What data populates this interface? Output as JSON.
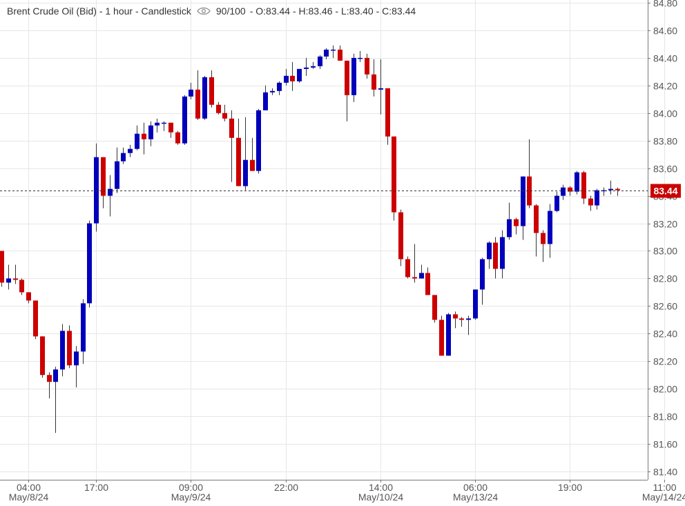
{
  "header": {
    "instrument": "Brent Crude Oil (Bid) - 1 hour - Candlestick",
    "zoom": "90/100",
    "ohlc": "- O:83.44 - H:83.46 - L:83.40 - C:83.44"
  },
  "price_tag": "83.44",
  "colors": {
    "up": "#0000bb",
    "down": "#cc0000",
    "grid": "#e6e6e6",
    "axis_text": "#555555",
    "price_tag_bg": "#cc0000",
    "dashed_line": "#333333"
  },
  "chart_data": {
    "type": "candlestick",
    "ylim": [
      81.34,
      84.82
    ],
    "y_ticks": [
      "84.80",
      "84.60",
      "84.40",
      "84.20",
      "84.00",
      "83.80",
      "83.60",
      "83.40",
      "83.20",
      "83.00",
      "82.80",
      "82.60",
      "82.40",
      "82.20",
      "82.00",
      "81.80",
      "81.60",
      "81.40"
    ],
    "x_ticks": [
      {
        "time": "04:00",
        "date": "May/8/24",
        "index": 4
      },
      {
        "time": "17:00",
        "date": "May/8/24",
        "index": 14
      },
      {
        "time": "09:00",
        "date": "May/9/24",
        "index": 28
      },
      {
        "time": "22:00",
        "date": "May/9/24",
        "index": 42
      },
      {
        "time": "14:00",
        "date": "May/10/24",
        "index": 56
      },
      {
        "time": "06:00",
        "date": "May/13/24",
        "index": 70
      },
      {
        "time": "19:00",
        "date": "May/13/24",
        "index": 84
      },
      {
        "time": "11:00",
        "date": "May/14/24",
        "index": 98
      }
    ],
    "date_labels": [
      "May/8/24",
      "May/9/24",
      "May/10/24",
      "May/13/24",
      "May/14/24"
    ],
    "last_price": 83.44,
    "candles": [
      {
        "o": 83.0,
        "h": 83.0,
        "l": 82.74,
        "c": 82.77
      },
      {
        "o": 82.77,
        "h": 82.9,
        "l": 82.72,
        "c": 82.8
      },
      {
        "o": 82.8,
        "h": 82.9,
        "l": 82.76,
        "c": 82.79
      },
      {
        "o": 82.79,
        "h": 82.8,
        "l": 82.68,
        "c": 82.7
      },
      {
        "o": 82.7,
        "h": 82.7,
        "l": 82.62,
        "c": 82.64
      },
      {
        "o": 82.64,
        "h": 82.64,
        "l": 82.36,
        "c": 82.38
      },
      {
        "o": 82.38,
        "h": 82.38,
        "l": 82.08,
        "c": 82.1
      },
      {
        "o": 82.1,
        "h": 82.12,
        "l": 81.93,
        "c": 82.05
      },
      {
        "o": 82.05,
        "h": 82.16,
        "l": 81.68,
        "c": 82.14
      },
      {
        "o": 82.14,
        "h": 82.47,
        "l": 82.09,
        "c": 82.42
      },
      {
        "o": 82.42,
        "h": 82.46,
        "l": 82.15,
        "c": 82.17
      },
      {
        "o": 82.17,
        "h": 82.31,
        "l": 82.01,
        "c": 82.27
      },
      {
        "o": 82.27,
        "h": 82.65,
        "l": 82.18,
        "c": 82.62
      },
      {
        "o": 82.62,
        "h": 83.22,
        "l": 82.59,
        "c": 83.2
      },
      {
        "o": 83.2,
        "h": 83.78,
        "l": 83.14,
        "c": 83.68
      },
      {
        "o": 83.68,
        "h": 83.68,
        "l": 83.31,
        "c": 83.4
      },
      {
        "o": 83.4,
        "h": 83.55,
        "l": 83.25,
        "c": 83.45
      },
      {
        "o": 83.45,
        "h": 83.75,
        "l": 83.42,
        "c": 83.65
      },
      {
        "o": 83.65,
        "h": 83.75,
        "l": 83.63,
        "c": 83.71
      },
      {
        "o": 83.71,
        "h": 83.77,
        "l": 83.68,
        "c": 83.74
      },
      {
        "o": 83.74,
        "h": 83.91,
        "l": 83.73,
        "c": 83.85
      },
      {
        "o": 83.85,
        "h": 83.93,
        "l": 83.7,
        "c": 83.81
      },
      {
        "o": 83.81,
        "h": 83.94,
        "l": 83.76,
        "c": 83.91
      },
      {
        "o": 83.91,
        "h": 83.96,
        "l": 83.86,
        "c": 83.93
      },
      {
        "o": 83.93,
        "h": 83.94,
        "l": 83.87,
        "c": 83.93
      },
      {
        "o": 83.93,
        "h": 83.93,
        "l": 83.82,
        "c": 83.86
      },
      {
        "o": 83.86,
        "h": 83.87,
        "l": 83.77,
        "c": 83.78
      },
      {
        "o": 83.78,
        "h": 84.13,
        "l": 83.77,
        "c": 84.12
      },
      {
        "o": 84.12,
        "h": 84.22,
        "l": 84.1,
        "c": 84.17
      },
      {
        "o": 84.17,
        "h": 84.31,
        "l": 83.95,
        "c": 83.96
      },
      {
        "o": 83.96,
        "h": 84.27,
        "l": 83.95,
        "c": 84.26
      },
      {
        "o": 84.26,
        "h": 84.31,
        "l": 84.04,
        "c": 84.06
      },
      {
        "o": 84.06,
        "h": 84.08,
        "l": 83.99,
        "c": 84.0
      },
      {
        "o": 84.0,
        "h": 84.06,
        "l": 83.94,
        "c": 83.96
      },
      {
        "o": 83.96,
        "h": 84.02,
        "l": 83.5,
        "c": 83.82
      },
      {
        "o": 83.82,
        "h": 83.96,
        "l": 83.47,
        "c": 83.47
      },
      {
        "o": 83.47,
        "h": 83.97,
        "l": 83.44,
        "c": 83.66
      },
      {
        "o": 83.66,
        "h": 83.82,
        "l": 83.58,
        "c": 83.58
      },
      {
        "o": 83.58,
        "h": 84.03,
        "l": 83.56,
        "c": 84.02
      },
      {
        "o": 84.02,
        "h": 84.2,
        "l": 84.02,
        "c": 84.15
      },
      {
        "o": 84.15,
        "h": 84.18,
        "l": 84.13,
        "c": 84.16
      },
      {
        "o": 84.16,
        "h": 84.23,
        "l": 84.13,
        "c": 84.22
      },
      {
        "o": 84.22,
        "h": 84.32,
        "l": 84.2,
        "c": 84.27
      },
      {
        "o": 84.27,
        "h": 84.37,
        "l": 84.16,
        "c": 84.23
      },
      {
        "o": 84.23,
        "h": 84.32,
        "l": 84.22,
        "c": 84.32
      },
      {
        "o": 84.32,
        "h": 84.4,
        "l": 84.27,
        "c": 84.33
      },
      {
        "o": 84.33,
        "h": 84.37,
        "l": 84.32,
        "c": 84.34
      },
      {
        "o": 84.34,
        "h": 84.42,
        "l": 84.32,
        "c": 84.41
      },
      {
        "o": 84.41,
        "h": 84.47,
        "l": 84.39,
        "c": 84.46
      },
      {
        "o": 84.46,
        "h": 84.49,
        "l": 84.4,
        "c": 84.46
      },
      {
        "o": 84.46,
        "h": 84.49,
        "l": 84.38,
        "c": 84.38
      },
      {
        "o": 84.38,
        "h": 84.38,
        "l": 83.94,
        "c": 84.13
      },
      {
        "o": 84.13,
        "h": 84.43,
        "l": 84.08,
        "c": 84.4
      },
      {
        "o": 84.4,
        "h": 84.45,
        "l": 84.37,
        "c": 84.4
      },
      {
        "o": 84.4,
        "h": 84.43,
        "l": 84.25,
        "c": 84.28
      },
      {
        "o": 84.28,
        "h": 84.39,
        "l": 84.12,
        "c": 84.17
      },
      {
        "o": 84.17,
        "h": 84.39,
        "l": 83.99,
        "c": 84.18
      },
      {
        "o": 84.18,
        "h": 84.18,
        "l": 83.77,
        "c": 83.83
      },
      {
        "o": 83.83,
        "h": 83.83,
        "l": 83.22,
        "c": 83.28
      },
      {
        "o": 83.28,
        "h": 83.3,
        "l": 82.89,
        "c": 82.94
      },
      {
        "o": 82.94,
        "h": 82.96,
        "l": 82.8,
        "c": 82.81
      },
      {
        "o": 82.81,
        "h": 83.05,
        "l": 82.77,
        "c": 82.8
      },
      {
        "o": 82.8,
        "h": 82.9,
        "l": 82.8,
        "c": 82.84
      },
      {
        "o": 82.84,
        "h": 82.88,
        "l": 82.68,
        "c": 82.68
      },
      {
        "o": 82.68,
        "h": 82.68,
        "l": 82.48,
        "c": 82.5
      },
      {
        "o": 82.5,
        "h": 82.53,
        "l": 82.24,
        "c": 82.24
      },
      {
        "o": 82.24,
        "h": 82.55,
        "l": 82.24,
        "c": 82.54
      },
      {
        "o": 82.54,
        "h": 82.56,
        "l": 82.44,
        "c": 82.51
      },
      {
        "o": 82.51,
        "h": 82.52,
        "l": 82.45,
        "c": 82.5
      },
      {
        "o": 82.5,
        "h": 82.53,
        "l": 82.39,
        "c": 82.51
      },
      {
        "o": 82.51,
        "h": 82.72,
        "l": 82.5,
        "c": 82.72
      },
      {
        "o": 82.72,
        "h": 82.95,
        "l": 82.61,
        "c": 82.94
      },
      {
        "o": 82.94,
        "h": 83.07,
        "l": 82.87,
        "c": 83.06
      },
      {
        "o": 83.06,
        "h": 83.1,
        "l": 82.8,
        "c": 82.87
      },
      {
        "o": 82.87,
        "h": 83.15,
        "l": 82.8,
        "c": 83.1
      },
      {
        "o": 83.1,
        "h": 83.35,
        "l": 83.08,
        "c": 83.23
      },
      {
        "o": 83.23,
        "h": 83.24,
        "l": 83.12,
        "c": 83.18
      },
      {
        "o": 83.18,
        "h": 83.54,
        "l": 83.08,
        "c": 83.54
      },
      {
        "o": 83.54,
        "h": 83.81,
        "l": 83.31,
        "c": 83.33
      },
      {
        "o": 83.33,
        "h": 83.34,
        "l": 82.96,
        "c": 83.13
      },
      {
        "o": 83.13,
        "h": 83.15,
        "l": 82.92,
        "c": 83.05
      },
      {
        "o": 83.05,
        "h": 83.34,
        "l": 82.95,
        "c": 83.29
      },
      {
        "o": 83.29,
        "h": 83.43,
        "l": 83.28,
        "c": 83.4
      },
      {
        "o": 83.4,
        "h": 83.48,
        "l": 83.37,
        "c": 83.46
      },
      {
        "o": 83.46,
        "h": 83.47,
        "l": 83.4,
        "c": 83.43
      },
      {
        "o": 83.43,
        "h": 83.58,
        "l": 83.41,
        "c": 83.57
      },
      {
        "o": 83.57,
        "h": 83.58,
        "l": 83.34,
        "c": 83.38
      },
      {
        "o": 83.38,
        "h": 83.4,
        "l": 83.29,
        "c": 83.33
      },
      {
        "o": 83.33,
        "h": 83.45,
        "l": 83.3,
        "c": 83.44
      },
      {
        "o": 83.44,
        "h": 83.46,
        "l": 83.4,
        "c": 83.44
      },
      {
        "o": 83.44,
        "h": 83.51,
        "l": 83.41,
        "c": 83.45
      },
      {
        "o": 83.45,
        "h": 83.46,
        "l": 83.4,
        "c": 83.44
      }
    ]
  }
}
